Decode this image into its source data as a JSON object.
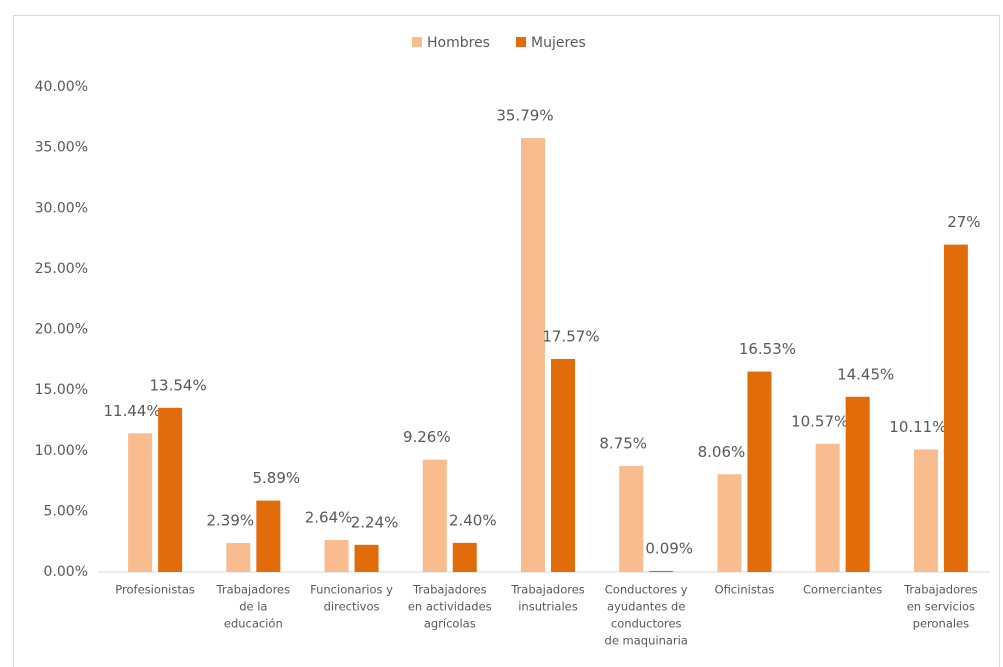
{
  "chart_data": {
    "type": "bar",
    "categories": [
      [
        "Profesionistas"
      ],
      [
        "Trabajadores",
        "de la",
        "educación"
      ],
      [
        "Funcionarios y",
        "directivos"
      ],
      [
        "Trabajadores",
        "en actividades",
        "agrícolas"
      ],
      [
        "Trabajadores",
        "insutriales"
      ],
      [
        "Conductores y",
        "ayudantes de",
        "conductores",
        "de maquinaria"
      ],
      [
        "Oficinistas"
      ],
      [
        "Comerciantes"
      ],
      [
        "Trabajadores",
        "en servicios",
        "peronales"
      ]
    ],
    "series": [
      {
        "name": "Hombres",
        "color": "#f8bc8e",
        "values": [
          11.44,
          2.39,
          2.64,
          9.26,
          35.79,
          8.75,
          8.06,
          10.57,
          10.11
        ],
        "value_labels": [
          "11.44%",
          "2.39%",
          "2.64%",
          "9.26%",
          "35.79%",
          "8.75%",
          "8.06%",
          "10.57%",
          "10.11%"
        ]
      },
      {
        "name": "Mujeres",
        "color": "#e26b0a",
        "values": [
          13.54,
          5.89,
          2.24,
          2.4,
          17.57,
          0.09,
          16.53,
          14.45,
          27
        ],
        "value_labels": [
          "13.54%",
          "5.89%",
          "2.24%",
          "2.40%",
          "17.57%",
          "0.09%",
          "16.53%",
          "14.45%",
          "27%"
        ]
      }
    ],
    "ylim": [
      0,
      40
    ],
    "yticks": [
      {
        "value": 0,
        "label": "0.00%"
      },
      {
        "value": 5,
        "label": "5.00%"
      },
      {
        "value": 10,
        "label": "10.00%"
      },
      {
        "value": 15,
        "label": "15.00%"
      },
      {
        "value": 20,
        "label": "20.00%"
      },
      {
        "value": 25,
        "label": "25.00%"
      },
      {
        "value": 30,
        "label": "30.00%"
      },
      {
        "value": 35,
        "label": "35.00%"
      },
      {
        "value": 40,
        "label": "40.00%"
      }
    ],
    "legend": "top"
  }
}
